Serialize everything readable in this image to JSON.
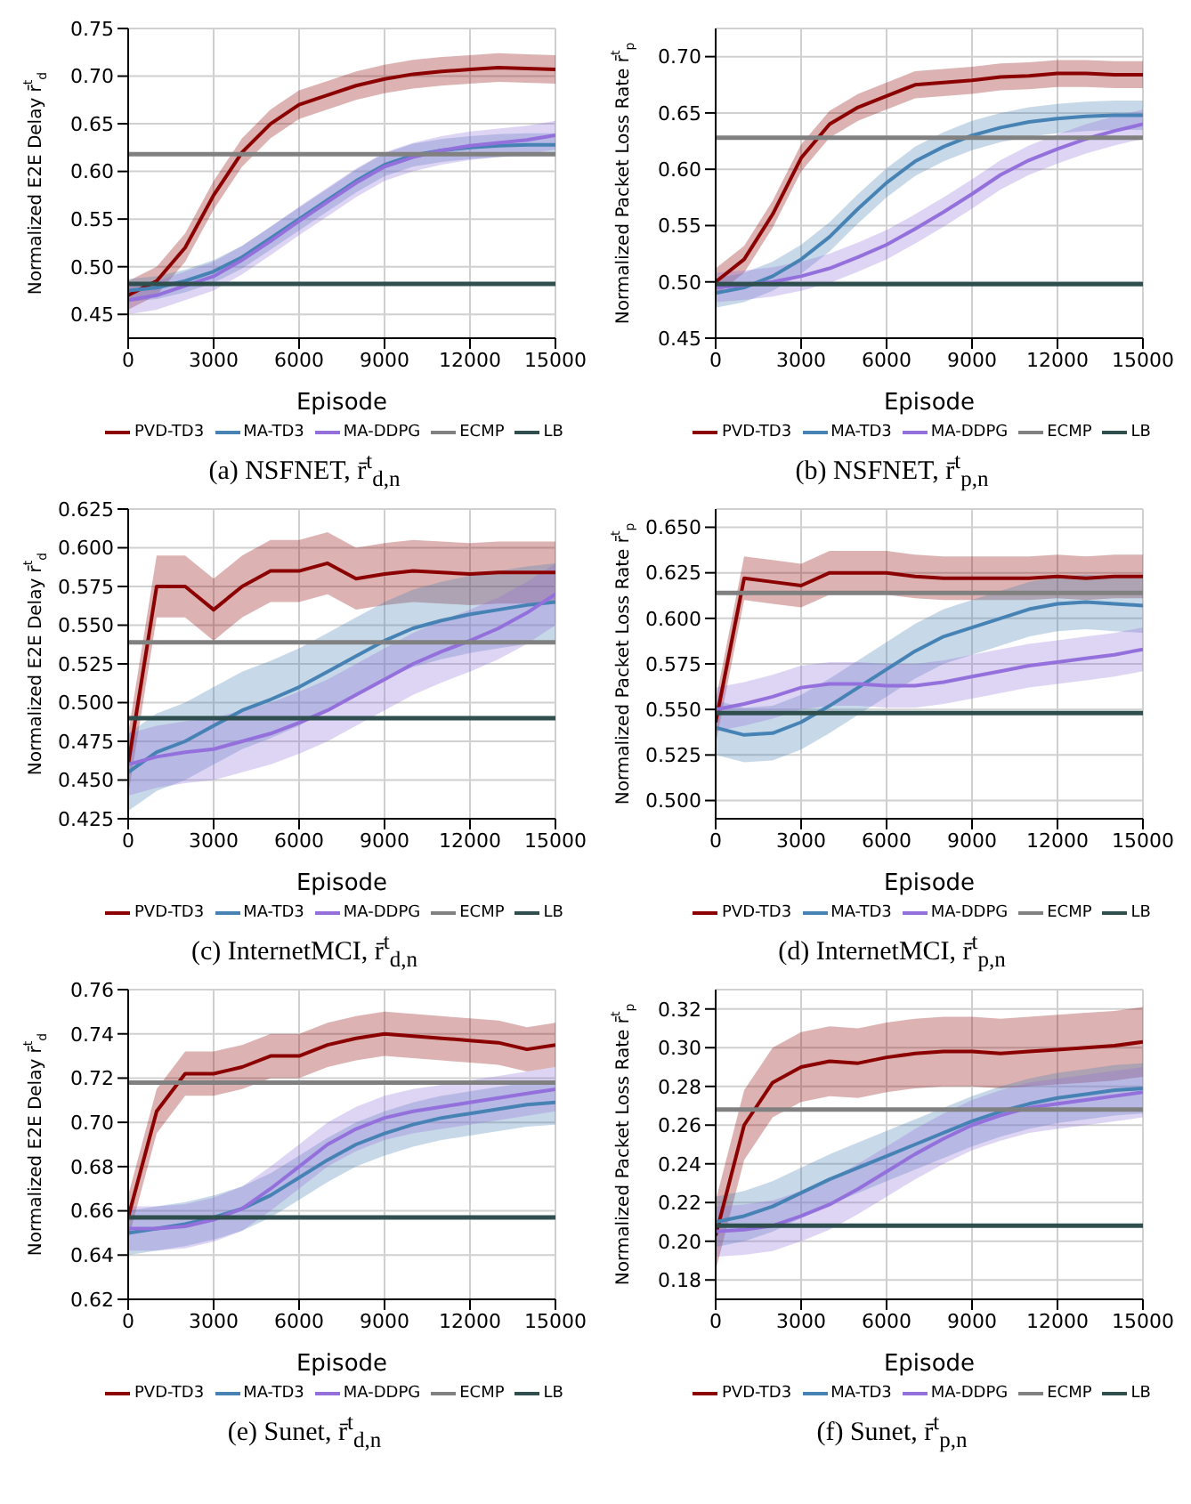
{
  "chart_data": [
    {
      "type": "line",
      "title": "(a) NSFNET, r̄$^{t}$$_{d,n}$",
      "xlabel": "Episode",
      "ylabel": "Normalized E2E Delay r̄$^{t}$$_{d}$",
      "grid": true,
      "legend": "bottom",
      "x": [
        0,
        1000,
        2000,
        3000,
        4000,
        5000,
        6000,
        7000,
        8000,
        9000,
        10000,
        11000,
        12000,
        13000,
        14000,
        15000
      ],
      "xlim": [
        0,
        15000
      ],
      "xticks": [
        0,
        3000,
        6000,
        9000,
        12000,
        15000
      ],
      "ylim": [
        0.425,
        0.75
      ],
      "yticks": [
        {
          "value": 0.45,
          "label": "0.45"
        },
        {
          "value": 0.5,
          "label": "0.50"
        },
        {
          "value": 0.55,
          "label": "0.55"
        },
        {
          "value": 0.6,
          "label": "0.60"
        },
        {
          "value": 0.65,
          "label": "0.65"
        },
        {
          "value": 0.7,
          "label": "0.70"
        },
        {
          "value": 0.75,
          "label": "0.75"
        }
      ],
      "series": [
        {
          "name": "PVD-TD3",
          "color": "#8b0000",
          "values": [
            0.47,
            0.485,
            0.52,
            0.575,
            0.62,
            0.65,
            0.67,
            0.68,
            0.69,
            0.697,
            0.702,
            0.705,
            0.707,
            0.709,
            0.708,
            0.707
          ],
          "lower": [
            0.455,
            0.47,
            0.505,
            0.56,
            0.605,
            0.635,
            0.655,
            0.665,
            0.675,
            0.682,
            0.687,
            0.69,
            0.692,
            0.694,
            0.693,
            0.692
          ],
          "upper": [
            0.485,
            0.5,
            0.535,
            0.59,
            0.635,
            0.665,
            0.685,
            0.695,
            0.705,
            0.712,
            0.717,
            0.72,
            0.722,
            0.724,
            0.723,
            0.722
          ]
        },
        {
          "name": "MA-TD3",
          "color": "#4682b4",
          "values": [
            0.475,
            0.478,
            0.485,
            0.495,
            0.51,
            0.53,
            0.55,
            0.57,
            0.59,
            0.607,
            0.617,
            0.622,
            0.625,
            0.627,
            0.628,
            0.628
          ],
          "lower": [
            0.463,
            0.466,
            0.473,
            0.483,
            0.498,
            0.518,
            0.538,
            0.558,
            0.578,
            0.595,
            0.605,
            0.61,
            0.613,
            0.615,
            0.616,
            0.616
          ],
          "upper": [
            0.487,
            0.49,
            0.497,
            0.507,
            0.522,
            0.542,
            0.562,
            0.582,
            0.602,
            0.619,
            0.629,
            0.634,
            0.637,
            0.639,
            0.64,
            0.64
          ]
        },
        {
          "name": "MA-DDPG",
          "color": "#9370db",
          "values": [
            0.465,
            0.47,
            0.48,
            0.49,
            0.507,
            0.527,
            0.548,
            0.568,
            0.588,
            0.605,
            0.615,
            0.622,
            0.627,
            0.63,
            0.633,
            0.638
          ],
          "lower": [
            0.45,
            0.455,
            0.465,
            0.475,
            0.492,
            0.512,
            0.533,
            0.553,
            0.573,
            0.59,
            0.6,
            0.607,
            0.612,
            0.615,
            0.618,
            0.623
          ],
          "upper": [
            0.48,
            0.485,
            0.495,
            0.505,
            0.522,
            0.542,
            0.563,
            0.583,
            0.603,
            0.62,
            0.63,
            0.637,
            0.642,
            0.645,
            0.648,
            0.653
          ]
        },
        {
          "name": "ECMP",
          "color": "#808080",
          "values": [
            0.618,
            0.618,
            0.618,
            0.618,
            0.618,
            0.618,
            0.618,
            0.618,
            0.618,
            0.618,
            0.618,
            0.618,
            0.618,
            0.618,
            0.618,
            0.618
          ]
        },
        {
          "name": "LB",
          "color": "#2f4f4f",
          "values": [
            0.482,
            0.482,
            0.482,
            0.482,
            0.482,
            0.482,
            0.482,
            0.482,
            0.482,
            0.482,
            0.482,
            0.482,
            0.482,
            0.482,
            0.482,
            0.482
          ]
        }
      ]
    },
    {
      "type": "line",
      "title": "(b) NSFNET, r̄$^{t}$$_{p,n}$",
      "xlabel": "Episode",
      "ylabel": "Normalized Packet Loss Rate r̄$^{t}$$_{p}$",
      "grid": true,
      "legend": "bottom",
      "x": [
        0,
        1000,
        2000,
        3000,
        4000,
        5000,
        6000,
        7000,
        8000,
        9000,
        10000,
        11000,
        12000,
        13000,
        14000,
        15000
      ],
      "xlim": [
        0,
        15000
      ],
      "xticks": [
        0,
        3000,
        6000,
        9000,
        12000,
        15000
      ],
      "ylim": [
        0.45,
        0.725
      ],
      "yticks": [
        {
          "value": 0.45,
          "label": "0.45"
        },
        {
          "value": 0.5,
          "label": "0.50"
        },
        {
          "value": 0.55,
          "label": "0.55"
        },
        {
          "value": 0.6,
          "label": "0.60"
        },
        {
          "value": 0.65,
          "label": "0.65"
        },
        {
          "value": 0.7,
          "label": "0.70"
        }
      ],
      "series": [
        {
          "name": "PVD-TD3",
          "color": "#8b0000",
          "values": [
            0.5,
            0.52,
            0.56,
            0.61,
            0.64,
            0.655,
            0.665,
            0.675,
            0.677,
            0.679,
            0.682,
            0.683,
            0.685,
            0.685,
            0.684,
            0.684
          ],
          "lower": [
            0.488,
            0.508,
            0.548,
            0.598,
            0.628,
            0.643,
            0.653,
            0.663,
            0.665,
            0.667,
            0.67,
            0.671,
            0.673,
            0.673,
            0.672,
            0.672
          ],
          "upper": [
            0.512,
            0.532,
            0.572,
            0.622,
            0.652,
            0.667,
            0.677,
            0.687,
            0.689,
            0.691,
            0.694,
            0.695,
            0.697,
            0.697,
            0.696,
            0.696
          ]
        },
        {
          "name": "MA-TD3",
          "color": "#4682b4",
          "values": [
            0.49,
            0.495,
            0.505,
            0.52,
            0.54,
            0.565,
            0.588,
            0.607,
            0.62,
            0.63,
            0.637,
            0.642,
            0.645,
            0.647,
            0.648,
            0.648
          ],
          "lower": [
            0.477,
            0.482,
            0.492,
            0.507,
            0.527,
            0.552,
            0.575,
            0.594,
            0.607,
            0.617,
            0.624,
            0.629,
            0.632,
            0.634,
            0.635,
            0.635
          ],
          "upper": [
            0.503,
            0.508,
            0.518,
            0.533,
            0.553,
            0.578,
            0.601,
            0.62,
            0.633,
            0.643,
            0.65,
            0.655,
            0.658,
            0.66,
            0.661,
            0.661
          ]
        },
        {
          "name": "MA-DDPG",
          "color": "#9370db",
          "values": [
            0.495,
            0.497,
            0.5,
            0.505,
            0.512,
            0.522,
            0.533,
            0.547,
            0.562,
            0.578,
            0.595,
            0.608,
            0.618,
            0.627,
            0.634,
            0.64
          ],
          "lower": [
            0.482,
            0.484,
            0.487,
            0.492,
            0.499,
            0.509,
            0.52,
            0.534,
            0.549,
            0.565,
            0.582,
            0.595,
            0.605,
            0.614,
            0.621,
            0.627
          ],
          "upper": [
            0.508,
            0.51,
            0.513,
            0.518,
            0.525,
            0.535,
            0.546,
            0.56,
            0.575,
            0.591,
            0.608,
            0.621,
            0.631,
            0.64,
            0.647,
            0.653
          ]
        },
        {
          "name": "ECMP",
          "color": "#808080",
          "values": [
            0.628,
            0.628,
            0.628,
            0.628,
            0.628,
            0.628,
            0.628,
            0.628,
            0.628,
            0.628,
            0.628,
            0.628,
            0.628,
            0.628,
            0.628,
            0.628
          ]
        },
        {
          "name": "LB",
          "color": "#2f4f4f",
          "values": [
            0.498,
            0.498,
            0.498,
            0.498,
            0.498,
            0.498,
            0.498,
            0.498,
            0.498,
            0.498,
            0.498,
            0.498,
            0.498,
            0.498,
            0.498,
            0.498
          ]
        }
      ]
    },
    {
      "type": "line",
      "title": "(c) InternetMCI, r̄$^{t}$$_{d,n}$",
      "xlabel": "Episode",
      "ylabel": "Normalized E2E Delay r̄$^{t}$$_{d}$",
      "grid": true,
      "legend": "bottom",
      "x": [
        0,
        1000,
        2000,
        3000,
        4000,
        5000,
        6000,
        7000,
        8000,
        9000,
        10000,
        11000,
        12000,
        13000,
        14000,
        15000
      ],
      "xlim": [
        0,
        15000
      ],
      "xticks": [
        0,
        3000,
        6000,
        9000,
        12000,
        15000
      ],
      "ylim": [
        0.425,
        0.625
      ],
      "yticks": [
        {
          "value": 0.425,
          "label": "0.425"
        },
        {
          "value": 0.45,
          "label": "0.450"
        },
        {
          "value": 0.475,
          "label": "0.475"
        },
        {
          "value": 0.5,
          "label": "0.500"
        },
        {
          "value": 0.525,
          "label": "0.525"
        },
        {
          "value": 0.55,
          "label": "0.550"
        },
        {
          "value": 0.575,
          "label": "0.575"
        },
        {
          "value": 0.6,
          "label": "0.600"
        },
        {
          "value": 0.625,
          "label": "0.625"
        }
      ],
      "series": [
        {
          "name": "PVD-TD3",
          "color": "#8b0000",
          "values": [
            0.46,
            0.575,
            0.575,
            0.56,
            0.575,
            0.585,
            0.585,
            0.59,
            0.58,
            0.583,
            0.585,
            0.584,
            0.583,
            0.584,
            0.584,
            0.584
          ],
          "lower": [
            0.44,
            0.555,
            0.555,
            0.54,
            0.555,
            0.565,
            0.565,
            0.57,
            0.56,
            0.563,
            0.565,
            0.564,
            0.563,
            0.564,
            0.564,
            0.564
          ],
          "upper": [
            0.48,
            0.595,
            0.595,
            0.58,
            0.595,
            0.605,
            0.605,
            0.61,
            0.6,
            0.603,
            0.605,
            0.604,
            0.603,
            0.604,
            0.604,
            0.604
          ]
        },
        {
          "name": "MA-TD3",
          "color": "#4682b4",
          "values": [
            0.455,
            0.468,
            0.475,
            0.485,
            0.495,
            0.502,
            0.51,
            0.52,
            0.53,
            0.54,
            0.548,
            0.553,
            0.557,
            0.56,
            0.563,
            0.565
          ],
          "lower": [
            0.43,
            0.443,
            0.45,
            0.46,
            0.47,
            0.477,
            0.485,
            0.495,
            0.505,
            0.515,
            0.523,
            0.528,
            0.532,
            0.535,
            0.538,
            0.54
          ],
          "upper": [
            0.48,
            0.493,
            0.5,
            0.51,
            0.52,
            0.527,
            0.535,
            0.545,
            0.555,
            0.565,
            0.573,
            0.578,
            0.582,
            0.585,
            0.588,
            0.59
          ]
        },
        {
          "name": "MA-DDPG",
          "color": "#9370db",
          "values": [
            0.46,
            0.465,
            0.468,
            0.47,
            0.475,
            0.48,
            0.487,
            0.495,
            0.505,
            0.515,
            0.525,
            0.533,
            0.54,
            0.548,
            0.558,
            0.57
          ],
          "lower": [
            0.44,
            0.445,
            0.448,
            0.45,
            0.455,
            0.46,
            0.467,
            0.475,
            0.485,
            0.495,
            0.505,
            0.513,
            0.52,
            0.528,
            0.538,
            0.55
          ],
          "upper": [
            0.48,
            0.485,
            0.488,
            0.49,
            0.495,
            0.5,
            0.507,
            0.515,
            0.525,
            0.535,
            0.545,
            0.553,
            0.56,
            0.568,
            0.578,
            0.59
          ]
        },
        {
          "name": "ECMP",
          "color": "#808080",
          "values": [
            0.539,
            0.539,
            0.539,
            0.539,
            0.539,
            0.539,
            0.539,
            0.539,
            0.539,
            0.539,
            0.539,
            0.539,
            0.539,
            0.539,
            0.539,
            0.539
          ]
        },
        {
          "name": "LB",
          "color": "#2f4f4f",
          "values": [
            0.49,
            0.49,
            0.49,
            0.49,
            0.49,
            0.49,
            0.49,
            0.49,
            0.49,
            0.49,
            0.49,
            0.49,
            0.49,
            0.49,
            0.49,
            0.49
          ]
        }
      ]
    },
    {
      "type": "line",
      "title": "(d) InternetMCI, r̄$^{t}$$_{p,n}$",
      "xlabel": "Episode",
      "ylabel": "Normalized Packet Loss Rate r̄$^{t}$$_{p}$",
      "grid": true,
      "legend": "bottom",
      "x": [
        0,
        1000,
        2000,
        3000,
        4000,
        5000,
        6000,
        7000,
        8000,
        9000,
        10000,
        11000,
        12000,
        13000,
        14000,
        15000
      ],
      "xlim": [
        0,
        15000
      ],
      "xticks": [
        0,
        3000,
        6000,
        9000,
        12000,
        15000
      ],
      "ylim": [
        0.49,
        0.66
      ],
      "yticks": [
        {
          "value": 0.5,
          "label": "0.500"
        },
        {
          "value": 0.525,
          "label": "0.525"
        },
        {
          "value": 0.55,
          "label": "0.550"
        },
        {
          "value": 0.575,
          "label": "0.575"
        },
        {
          "value": 0.6,
          "label": "0.600"
        },
        {
          "value": 0.625,
          "label": "0.625"
        },
        {
          "value": 0.65,
          "label": "0.650"
        }
      ],
      "series": [
        {
          "name": "PVD-TD3",
          "color": "#8b0000",
          "values": [
            0.543,
            0.622,
            0.62,
            0.618,
            0.625,
            0.625,
            0.625,
            0.623,
            0.622,
            0.622,
            0.622,
            0.622,
            0.623,
            0.622,
            0.623,
            0.623
          ],
          "lower": [
            0.531,
            0.61,
            0.608,
            0.606,
            0.613,
            0.613,
            0.613,
            0.611,
            0.61,
            0.61,
            0.61,
            0.61,
            0.611,
            0.61,
            0.611,
            0.611
          ],
          "upper": [
            0.555,
            0.634,
            0.632,
            0.63,
            0.637,
            0.637,
            0.637,
            0.635,
            0.634,
            0.634,
            0.634,
            0.634,
            0.635,
            0.634,
            0.635,
            0.635
          ]
        },
        {
          "name": "MA-TD3",
          "color": "#4682b4",
          "values": [
            0.54,
            0.536,
            0.537,
            0.543,
            0.552,
            0.562,
            0.572,
            0.582,
            0.59,
            0.595,
            0.6,
            0.605,
            0.608,
            0.609,
            0.608,
            0.607
          ],
          "lower": [
            0.525,
            0.521,
            0.522,
            0.528,
            0.537,
            0.547,
            0.557,
            0.567,
            0.575,
            0.58,
            0.585,
            0.59,
            0.593,
            0.594,
            0.593,
            0.592
          ],
          "upper": [
            0.555,
            0.551,
            0.552,
            0.558,
            0.567,
            0.577,
            0.587,
            0.597,
            0.605,
            0.61,
            0.615,
            0.62,
            0.623,
            0.624,
            0.623,
            0.622
          ]
        },
        {
          "name": "MA-DDPG",
          "color": "#9370db",
          "values": [
            0.55,
            0.553,
            0.557,
            0.562,
            0.564,
            0.564,
            0.563,
            0.563,
            0.565,
            0.568,
            0.571,
            0.574,
            0.576,
            0.578,
            0.58,
            0.583
          ],
          "lower": [
            0.538,
            0.541,
            0.545,
            0.55,
            0.552,
            0.552,
            0.551,
            0.551,
            0.553,
            0.556,
            0.559,
            0.562,
            0.564,
            0.566,
            0.568,
            0.571
          ],
          "upper": [
            0.562,
            0.565,
            0.569,
            0.574,
            0.576,
            0.576,
            0.575,
            0.575,
            0.577,
            0.58,
            0.583,
            0.586,
            0.588,
            0.59,
            0.592,
            0.595
          ]
        },
        {
          "name": "ECMP",
          "color": "#808080",
          "values": [
            0.614,
            0.614,
            0.614,
            0.614,
            0.614,
            0.614,
            0.614,
            0.614,
            0.614,
            0.614,
            0.614,
            0.614,
            0.614,
            0.614,
            0.614,
            0.614
          ]
        },
        {
          "name": "LB",
          "color": "#2f4f4f",
          "values": [
            0.548,
            0.548,
            0.548,
            0.548,
            0.548,
            0.548,
            0.548,
            0.548,
            0.548,
            0.548,
            0.548,
            0.548,
            0.548,
            0.548,
            0.548,
            0.548
          ]
        }
      ]
    },
    {
      "type": "line",
      "title": "(e) Sunet, r̄$^{t}$$_{d,n}$",
      "xlabel": "Episode",
      "ylabel": "Normalized E2E Delay r̄$^{t}$$_{d}$",
      "grid": true,
      "legend": "bottom",
      "x": [
        0,
        1000,
        2000,
        3000,
        4000,
        5000,
        6000,
        7000,
        8000,
        9000,
        10000,
        11000,
        12000,
        13000,
        14000,
        15000
      ],
      "xlim": [
        0,
        15000
      ],
      "xticks": [
        0,
        3000,
        6000,
        9000,
        12000,
        15000
      ],
      "ylim": [
        0.62,
        0.76
      ],
      "yticks": [
        {
          "value": 0.62,
          "label": "0.62"
        },
        {
          "value": 0.64,
          "label": "0.64"
        },
        {
          "value": 0.66,
          "label": "0.66"
        },
        {
          "value": 0.68,
          "label": "0.68"
        },
        {
          "value": 0.7,
          "label": "0.70"
        },
        {
          "value": 0.72,
          "label": "0.72"
        },
        {
          "value": 0.74,
          "label": "0.74"
        },
        {
          "value": 0.76,
          "label": "0.76"
        }
      ],
      "series": [
        {
          "name": "PVD-TD3",
          "color": "#8b0000",
          "values": [
            0.657,
            0.705,
            0.722,
            0.722,
            0.725,
            0.73,
            0.73,
            0.735,
            0.738,
            0.74,
            0.739,
            0.738,
            0.737,
            0.736,
            0.733,
            0.735
          ],
          "lower": [
            0.647,
            0.695,
            0.712,
            0.712,
            0.715,
            0.72,
            0.72,
            0.725,
            0.728,
            0.73,
            0.729,
            0.728,
            0.727,
            0.726,
            0.723,
            0.725
          ],
          "upper": [
            0.667,
            0.715,
            0.732,
            0.732,
            0.735,
            0.74,
            0.74,
            0.745,
            0.748,
            0.75,
            0.749,
            0.748,
            0.747,
            0.746,
            0.743,
            0.745
          ]
        },
        {
          "name": "MA-TD3",
          "color": "#4682b4",
          "values": [
            0.65,
            0.652,
            0.654,
            0.657,
            0.661,
            0.667,
            0.675,
            0.683,
            0.69,
            0.695,
            0.699,
            0.702,
            0.704,
            0.706,
            0.708,
            0.709
          ],
          "lower": [
            0.64,
            0.642,
            0.644,
            0.647,
            0.651,
            0.657,
            0.665,
            0.673,
            0.68,
            0.685,
            0.689,
            0.692,
            0.694,
            0.696,
            0.698,
            0.699
          ],
          "upper": [
            0.66,
            0.662,
            0.664,
            0.667,
            0.671,
            0.677,
            0.685,
            0.693,
            0.7,
            0.705,
            0.709,
            0.712,
            0.714,
            0.716,
            0.718,
            0.719
          ]
        },
        {
          "name": "MA-DDPG",
          "color": "#9370db",
          "values": [
            0.652,
            0.652,
            0.653,
            0.656,
            0.661,
            0.67,
            0.68,
            0.69,
            0.697,
            0.702,
            0.705,
            0.707,
            0.709,
            0.711,
            0.713,
            0.715
          ],
          "lower": [
            0.642,
            0.642,
            0.643,
            0.646,
            0.651,
            0.66,
            0.67,
            0.68,
            0.687,
            0.692,
            0.695,
            0.697,
            0.699,
            0.701,
            0.703,
            0.705
          ],
          "upper": [
            0.662,
            0.662,
            0.663,
            0.666,
            0.671,
            0.68,
            0.69,
            0.7,
            0.707,
            0.712,
            0.715,
            0.717,
            0.719,
            0.721,
            0.723,
            0.725
          ]
        },
        {
          "name": "ECMP",
          "color": "#808080",
          "values": [
            0.718,
            0.718,
            0.718,
            0.718,
            0.718,
            0.718,
            0.718,
            0.718,
            0.718,
            0.718,
            0.718,
            0.718,
            0.718,
            0.718,
            0.718,
            0.718
          ]
        },
        {
          "name": "LB",
          "color": "#2f4f4f",
          "values": [
            0.657,
            0.657,
            0.657,
            0.657,
            0.657,
            0.657,
            0.657,
            0.657,
            0.657,
            0.657,
            0.657,
            0.657,
            0.657,
            0.657,
            0.657,
            0.657
          ]
        }
      ]
    },
    {
      "type": "line",
      "title": "(f) Sunet, r̄$^{t}$$_{p,n}$",
      "xlabel": "Episode",
      "ylabel": "Normalized Packet Loss Rate r̄$^{t}$$_{p}$",
      "grid": true,
      "legend": "bottom",
      "x": [
        0,
        1000,
        2000,
        3000,
        4000,
        5000,
        6000,
        7000,
        8000,
        9000,
        10000,
        11000,
        12000,
        13000,
        14000,
        15000
      ],
      "xlim": [
        0,
        15000
      ],
      "xticks": [
        0,
        3000,
        6000,
        9000,
        12000,
        15000
      ],
      "ylim": [
        0.17,
        0.33
      ],
      "yticks": [
        {
          "value": 0.18,
          "label": "0.18"
        },
        {
          "value": 0.2,
          "label": "0.20"
        },
        {
          "value": 0.22,
          "label": "0.22"
        },
        {
          "value": 0.24,
          "label": "0.24"
        },
        {
          "value": 0.26,
          "label": "0.26"
        },
        {
          "value": 0.28,
          "label": "0.28"
        },
        {
          "value": 0.3,
          "label": "0.30"
        },
        {
          "value": 0.32,
          "label": "0.32"
        }
      ],
      "series": [
        {
          "name": "PVD-TD3",
          "color": "#8b0000",
          "values": [
            0.203,
            0.26,
            0.282,
            0.29,
            0.293,
            0.292,
            0.295,
            0.297,
            0.298,
            0.298,
            0.297,
            0.298,
            0.299,
            0.3,
            0.301,
            0.303
          ],
          "lower": [
            0.185,
            0.242,
            0.264,
            0.272,
            0.275,
            0.274,
            0.277,
            0.279,
            0.28,
            0.28,
            0.279,
            0.28,
            0.281,
            0.282,
            0.283,
            0.285
          ],
          "upper": [
            0.221,
            0.278,
            0.3,
            0.308,
            0.311,
            0.31,
            0.313,
            0.315,
            0.316,
            0.316,
            0.315,
            0.316,
            0.317,
            0.318,
            0.319,
            0.321
          ]
        },
        {
          "name": "MA-TD3",
          "color": "#4682b4",
          "values": [
            0.21,
            0.213,
            0.218,
            0.225,
            0.232,
            0.238,
            0.244,
            0.25,
            0.256,
            0.262,
            0.267,
            0.271,
            0.274,
            0.276,
            0.278,
            0.279
          ],
          "lower": [
            0.197,
            0.2,
            0.205,
            0.212,
            0.219,
            0.225,
            0.231,
            0.237,
            0.243,
            0.249,
            0.254,
            0.258,
            0.261,
            0.263,
            0.265,
            0.266
          ],
          "upper": [
            0.223,
            0.226,
            0.231,
            0.238,
            0.245,
            0.251,
            0.257,
            0.263,
            0.269,
            0.275,
            0.28,
            0.284,
            0.287,
            0.289,
            0.291,
            0.292
          ]
        },
        {
          "name": "MA-DDPG",
          "color": "#9370db",
          "values": [
            0.205,
            0.206,
            0.208,
            0.213,
            0.219,
            0.227,
            0.236,
            0.245,
            0.253,
            0.26,
            0.265,
            0.269,
            0.271,
            0.273,
            0.275,
            0.277
          ],
          "lower": [
            0.192,
            0.193,
            0.195,
            0.2,
            0.206,
            0.214,
            0.223,
            0.232,
            0.24,
            0.247,
            0.252,
            0.256,
            0.258,
            0.26,
            0.262,
            0.264
          ],
          "upper": [
            0.218,
            0.219,
            0.221,
            0.226,
            0.232,
            0.24,
            0.249,
            0.258,
            0.266,
            0.273,
            0.278,
            0.282,
            0.284,
            0.286,
            0.288,
            0.29
          ]
        },
        {
          "name": "ECMP",
          "color": "#808080",
          "values": [
            0.268,
            0.268,
            0.268,
            0.268,
            0.268,
            0.268,
            0.268,
            0.268,
            0.268,
            0.268,
            0.268,
            0.268,
            0.268,
            0.268,
            0.268,
            0.268
          ]
        },
        {
          "name": "LB",
          "color": "#2f4f4f",
          "values": [
            0.208,
            0.208,
            0.208,
            0.208,
            0.208,
            0.208,
            0.208,
            0.208,
            0.208,
            0.208,
            0.208,
            0.208,
            0.208,
            0.208,
            0.208,
            0.208
          ]
        }
      ]
    }
  ]
}
